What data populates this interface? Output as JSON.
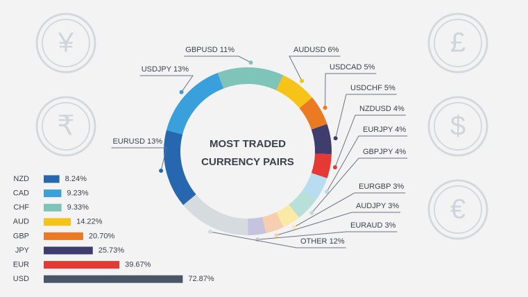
{
  "icons": [
    "¥",
    "₹",
    "£",
    "$",
    "€"
  ],
  "chart_data": [
    {
      "type": "donut",
      "title": [
        "MOST TRADED",
        "CURRENCY PAIRS"
      ],
      "categories": [
        "GBPUSD",
        "AUDUSD",
        "USDCAD",
        "USDCHF",
        "NZDUSD",
        "EURJPY",
        "GBPJPY",
        "EURGBP",
        "AUDJPY",
        "EURAUD",
        "OTHER",
        "EURUSD",
        "USDJPY"
      ],
      "values": [
        11,
        6,
        5,
        5,
        4,
        4,
        4,
        3,
        3,
        3,
        12,
        13,
        13
      ],
      "value_labels": [
        "11%",
        "6%",
        "5%",
        "5%",
        "4%",
        "4%",
        "4%",
        "3%",
        "3%",
        "3%",
        "12%",
        "13%",
        "13%"
      ],
      "colors": [
        "#7fc4b8",
        "#f6c418",
        "#ec7a23",
        "#3f3d6e",
        "#e53935",
        "#b8dcf0",
        "#b9e0d8",
        "#fbe9a6",
        "#f7cfb0",
        "#c6c3df",
        "#d6dbe0",
        "#2767b0",
        "#3aa0dc"
      ]
    },
    {
      "type": "bar",
      "categories": [
        "NZD",
        "CAD",
        "CHF",
        "AUD",
        "GBP",
        "JPY",
        "EUR",
        "USD"
      ],
      "values": [
        8.24,
        9.23,
        9.33,
        14.22,
        20.7,
        25.73,
        39.67,
        72.87
      ],
      "value_labels": [
        "8.24%",
        "9.23%",
        "9.33%",
        "14.22%",
        "20.70%",
        "25.73%",
        "39.67%",
        "72.87%"
      ],
      "colors": [
        "#2767b0",
        "#3aa0dc",
        "#7fc4b8",
        "#f6c418",
        "#ec7a23",
        "#3f3d6e",
        "#e53935",
        "#4a5668"
      ]
    }
  ]
}
